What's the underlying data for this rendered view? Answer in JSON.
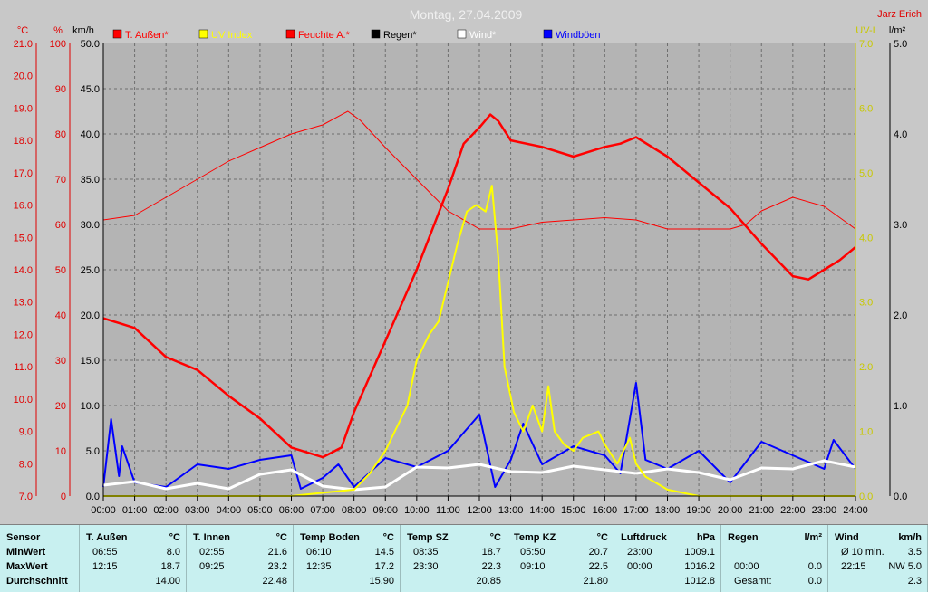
{
  "header": {
    "title": "Montag, 27.04.2009",
    "station": "Jarz Erich"
  },
  "axes": {
    "temp_unit": "°C",
    "hum_unit": "%",
    "wind_unit": "km/h",
    "uv_unit": "UV-I",
    "rain_unit": "l/m²",
    "temp_ticks": [
      "21.0",
      "20.0",
      "19.0",
      "18.0",
      "17.0",
      "16.0",
      "15.0",
      "14.0",
      "13.0",
      "12.0",
      "11.0",
      "10.0",
      "9.0",
      "8.0",
      "7.0"
    ],
    "hum_ticks": [
      "100",
      "90",
      "80",
      "70",
      "60",
      "50",
      "40",
      "30",
      "20",
      "10",
      "0"
    ],
    "wind_ticks": [
      "50.0",
      "45.0",
      "40.0",
      "35.0",
      "30.0",
      "25.0",
      "20.0",
      "15.0",
      "10.0",
      "5.0",
      "0.0"
    ],
    "uv_ticks": [
      "7.0",
      "6.0",
      "5.0",
      "4.0",
      "3.0",
      "2.0",
      "1.0",
      "0.0"
    ],
    "rain_ticks": [
      "5.0",
      "4.0",
      "3.0",
      "2.0",
      "1.0",
      "0.0"
    ],
    "time_ticks": [
      "00:00",
      "01:00",
      "02:00",
      "03:00",
      "04:00",
      "05:00",
      "06:00",
      "07:00",
      "08:00",
      "09:00",
      "10:00",
      "11:00",
      "12:00",
      "13:00",
      "14:00",
      "15:00",
      "16:00",
      "17:00",
      "18:00",
      "19:00",
      "20:00",
      "21:00",
      "22:00",
      "23:00",
      "24:00"
    ]
  },
  "legend": [
    {
      "label": "T. Außen*",
      "color": "#ff0000"
    },
    {
      "label": "UV Index",
      "color": "#ffff00"
    },
    {
      "label": "Feuchte A.*",
      "color": "#ff0000"
    },
    {
      "label": "Regen*",
      "color": "#000000"
    },
    {
      "label": "Wind*",
      "color": "#ffffff"
    },
    {
      "label": "Windböen",
      "color": "#0000ff"
    }
  ],
  "colors": {
    "temp": "#ff0000",
    "hum": "#ff0000",
    "uv": "#ffff00",
    "wind": "#ffffff",
    "gust": "#0000ff",
    "plot_bg": "#b4b4b4",
    "grid": "#6e6e6e"
  },
  "chart_data": {
    "type": "line",
    "title": "Montag, 27.04.2009",
    "x_unit": "hour",
    "series": [
      {
        "name": "T. Außen*",
        "axis": "°C",
        "points": [
          [
            0,
            12.5
          ],
          [
            1,
            12.2
          ],
          [
            2,
            11.3
          ],
          [
            3,
            10.9
          ],
          [
            4,
            10.1
          ],
          [
            5,
            9.4
          ],
          [
            6,
            8.5
          ],
          [
            7,
            8.2
          ],
          [
            7.6,
            8.5
          ],
          [
            8,
            9.6
          ],
          [
            9,
            11.8
          ],
          [
            10,
            14.0
          ],
          [
            11,
            16.5
          ],
          [
            11.5,
            17.9
          ],
          [
            12,
            18.4
          ],
          [
            12.35,
            18.8
          ],
          [
            12.6,
            18.6
          ],
          [
            13,
            18.0
          ],
          [
            14,
            17.8
          ],
          [
            15,
            17.5
          ],
          [
            16,
            17.8
          ],
          [
            16.5,
            17.9
          ],
          [
            17,
            18.1
          ],
          [
            18,
            17.5
          ],
          [
            19,
            16.7
          ],
          [
            20,
            15.9
          ],
          [
            21,
            14.8
          ],
          [
            22,
            13.8
          ],
          [
            22.5,
            13.7
          ],
          [
            23,
            14.0
          ],
          [
            23.5,
            14.3
          ],
          [
            24,
            14.7
          ]
        ]
      },
      {
        "name": "UV Index",
        "axis": "UV-I",
        "points": [
          [
            0,
            0
          ],
          [
            6,
            0
          ],
          [
            7,
            0.05
          ],
          [
            8,
            0.1
          ],
          [
            8.5,
            0.35
          ],
          [
            9,
            0.7
          ],
          [
            9.7,
            1.4
          ],
          [
            10,
            2.1
          ],
          [
            10.4,
            2.5
          ],
          [
            10.7,
            2.7
          ],
          [
            11,
            3.3
          ],
          [
            11.3,
            3.9
          ],
          [
            11.6,
            4.4
          ],
          [
            11.9,
            4.5
          ],
          [
            12.2,
            4.4
          ],
          [
            12.4,
            4.8
          ],
          [
            12.6,
            3.7
          ],
          [
            12.8,
            2.0
          ],
          [
            13.1,
            1.3
          ],
          [
            13.4,
            1.0
          ],
          [
            13.7,
            1.4
          ],
          [
            14,
            1.0
          ],
          [
            14.2,
            1.7
          ],
          [
            14.4,
            1.0
          ],
          [
            14.7,
            0.8
          ],
          [
            15,
            0.7
          ],
          [
            15.3,
            0.9
          ],
          [
            15.8,
            1.0
          ],
          [
            16,
            0.8
          ],
          [
            16.4,
            0.5
          ],
          [
            16.8,
            0.9
          ],
          [
            17,
            0.5
          ],
          [
            17.3,
            0.3
          ],
          [
            18,
            0.1
          ],
          [
            19,
            0
          ],
          [
            24,
            0
          ]
        ]
      },
      {
        "name": "Feuchte A.*",
        "axis": "%",
        "points": [
          [
            0,
            61
          ],
          [
            1,
            62
          ],
          [
            2,
            66
          ],
          [
            3,
            70
          ],
          [
            4,
            74
          ],
          [
            5,
            77
          ],
          [
            6,
            80
          ],
          [
            7,
            82
          ],
          [
            7.8,
            85
          ],
          [
            8.2,
            83
          ],
          [
            9,
            77
          ],
          [
            10,
            70
          ],
          [
            11,
            63
          ],
          [
            12,
            59
          ],
          [
            13,
            59
          ],
          [
            14,
            60.5
          ],
          [
            15,
            61
          ],
          [
            16,
            61.5
          ],
          [
            17,
            61
          ],
          [
            18,
            59
          ],
          [
            19,
            59
          ],
          [
            20,
            59
          ],
          [
            20.5,
            60
          ],
          [
            21,
            63
          ],
          [
            22,
            66
          ],
          [
            23,
            64
          ],
          [
            24,
            59
          ]
        ]
      },
      {
        "name": "Wind*",
        "axis": "km/h",
        "points": [
          [
            0,
            1.2
          ],
          [
            1,
            1.6
          ],
          [
            2,
            0.8
          ],
          [
            3,
            1.4
          ],
          [
            4,
            0.8
          ],
          [
            5,
            2.4
          ],
          [
            6,
            2.9
          ],
          [
            7,
            1.1
          ],
          [
            8,
            0.7
          ],
          [
            9,
            1.0
          ],
          [
            10,
            3.2
          ],
          [
            11,
            3.1
          ],
          [
            12,
            3.5
          ],
          [
            13,
            2.7
          ],
          [
            14,
            2.6
          ],
          [
            15,
            3.3
          ],
          [
            16,
            2.9
          ],
          [
            17,
            2.5
          ],
          [
            18,
            3.0
          ],
          [
            19,
            2.6
          ],
          [
            20,
            1.8
          ],
          [
            21,
            3.1
          ],
          [
            22,
            3.0
          ],
          [
            23,
            3.9
          ],
          [
            24,
            3.2
          ]
        ]
      },
      {
        "name": "Windböen",
        "axis": "km/h",
        "points": [
          [
            0,
            1.0
          ],
          [
            0.25,
            8.5
          ],
          [
            0.5,
            2.2
          ],
          [
            0.6,
            5.5
          ],
          [
            1,
            1.5
          ],
          [
            2,
            1.0
          ],
          [
            3,
            3.5
          ],
          [
            4,
            3.0
          ],
          [
            5,
            4.0
          ],
          [
            6,
            4.5
          ],
          [
            6.3,
            0.8
          ],
          [
            7,
            2.0
          ],
          [
            7.5,
            3.5
          ],
          [
            8,
            1.0
          ],
          [
            9,
            4.2
          ],
          [
            10,
            3.2
          ],
          [
            11,
            5.0
          ],
          [
            12,
            9.0
          ],
          [
            12.5,
            1.0
          ],
          [
            13,
            4.0
          ],
          [
            13.4,
            8.0
          ],
          [
            14,
            3.5
          ],
          [
            15,
            5.5
          ],
          [
            16,
            4.5
          ],
          [
            16.5,
            2.5
          ],
          [
            17,
            12.5
          ],
          [
            17.3,
            4.0
          ],
          [
            18,
            3.0
          ],
          [
            19,
            5.0
          ],
          [
            20,
            1.5
          ],
          [
            21,
            6.0
          ],
          [
            22,
            4.5
          ],
          [
            23,
            3.0
          ],
          [
            23.3,
            6.2
          ],
          [
            24,
            3.0
          ]
        ]
      }
    ]
  },
  "table": {
    "columns": [
      {
        "title": "Sensor",
        "unit": "",
        "rows": [
          {
            "a": "MinWert",
            "b": ""
          },
          {
            "a": "MaxWert",
            "b": ""
          },
          {
            "a": "Durchschnitt",
            "b": ""
          }
        ]
      },
      {
        "title": "T. Außen",
        "unit": "°C",
        "rows": [
          {
            "a": "06:55",
            "b": "8.0"
          },
          {
            "a": "12:15",
            "b": "18.7"
          },
          {
            "a": "",
            "b": "14.00"
          }
        ]
      },
      {
        "title": "T. Innen",
        "unit": "°C",
        "rows": [
          {
            "a": "02:55",
            "b": "21.6"
          },
          {
            "a": "09:25",
            "b": "23.2"
          },
          {
            "a": "",
            "b": "22.48"
          }
        ]
      },
      {
        "title": "Temp Boden",
        "unit": "°C",
        "rows": [
          {
            "a": "06:10",
            "b": "14.5"
          },
          {
            "a": "12:35",
            "b": "17.2"
          },
          {
            "a": "",
            "b": "15.90"
          }
        ]
      },
      {
        "title": "Temp SZ",
        "unit": "°C",
        "rows": [
          {
            "a": "08:35",
            "b": "18.7"
          },
          {
            "a": "23:30",
            "b": "22.3"
          },
          {
            "a": "",
            "b": "20.85"
          }
        ]
      },
      {
        "title": "Temp KZ",
        "unit": "°C",
        "rows": [
          {
            "a": "05:50",
            "b": "20.7"
          },
          {
            "a": "09:10",
            "b": "22.5"
          },
          {
            "a": "",
            "b": "21.80"
          }
        ]
      },
      {
        "title": "Luftdruck",
        "unit": "hPa",
        "rows": [
          {
            "a": "23:00",
            "b": "1009.1"
          },
          {
            "a": "00:00",
            "b": "1016.2"
          },
          {
            "a": "",
            "b": "1012.8"
          }
        ]
      },
      {
        "title": "Regen",
        "unit": "l/m²",
        "rows": [
          {
            "a": "",
            "b": ""
          },
          {
            "a": "00:00",
            "b": "0.0"
          },
          {
            "a": "Gesamt:",
            "b": "0.0"
          }
        ]
      },
      {
        "title": "Wind",
        "unit": "km/h",
        "rows": [
          {
            "a": "Ø 10 min.",
            "b": "3.5"
          },
          {
            "a": "22:15",
            "b": "NW 5.0"
          },
          {
            "a": "",
            "b": "2.3"
          }
        ]
      }
    ]
  }
}
